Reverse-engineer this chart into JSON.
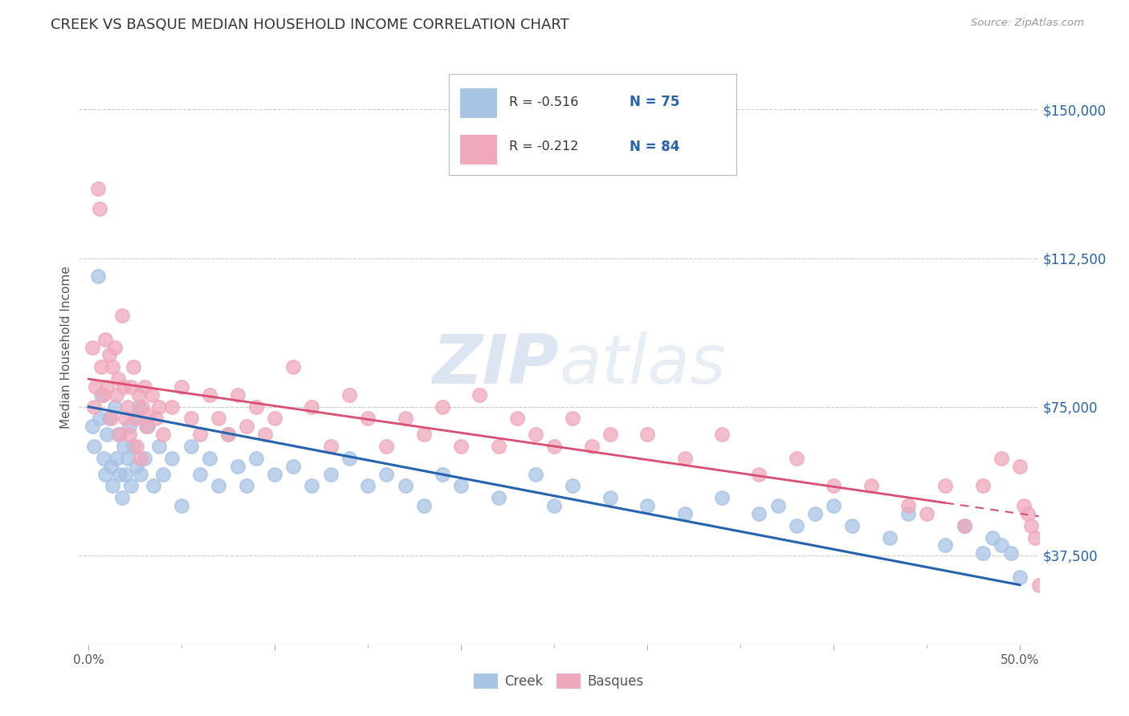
{
  "title": "CREEK VS BASQUE MEDIAN HOUSEHOLD INCOME CORRELATION CHART",
  "source": "Source: ZipAtlas.com",
  "ylabel": "Median Household Income",
  "yticks": [
    37500,
    75000,
    112500,
    150000
  ],
  "ytick_labels": [
    "$37,500",
    "$75,000",
    "$112,500",
    "$150,000"
  ],
  "creek_R": -0.516,
  "creek_N": 75,
  "basque_R": -0.212,
  "basque_N": 84,
  "creek_color": "#a8c4e5",
  "creek_line_color": "#2563ae",
  "basque_color": "#f0a8bc",
  "basque_line_color": "#d94f72",
  "legend_color": "#2563ae",
  "watermark_zip": "ZIP",
  "watermark_atlas": "atlas",
  "background_color": "#ffffff",
  "grid_color": "#cccccc",
  "title_color": "#333333",
  "source_color": "#999999",
  "creek_x": [
    0.2,
    0.3,
    0.5,
    0.6,
    0.7,
    0.8,
    0.9,
    1.0,
    1.1,
    1.2,
    1.3,
    1.4,
    1.5,
    1.6,
    1.7,
    1.8,
    1.9,
    2.0,
    2.1,
    2.2,
    2.3,
    2.4,
    2.5,
    2.6,
    2.7,
    2.8,
    3.0,
    3.2,
    3.5,
    3.8,
    4.0,
    4.5,
    5.0,
    5.5,
    6.0,
    6.5,
    7.0,
    7.5,
    8.0,
    8.5,
    9.0,
    10.0,
    11.0,
    12.0,
    13.0,
    14.0,
    15.0,
    16.0,
    17.0,
    18.0,
    19.0,
    20.0,
    22.0,
    24.0,
    25.0,
    26.0,
    28.0,
    30.0,
    32.0,
    34.0,
    36.0,
    37.0,
    38.0,
    39.0,
    40.0,
    41.0,
    43.0,
    44.0,
    46.0,
    47.0,
    48.0,
    48.5,
    49.0,
    49.5,
    50.0
  ],
  "creek_y": [
    70000,
    65000,
    108000,
    72000,
    78000,
    62000,
    58000,
    68000,
    72000,
    60000,
    55000,
    75000,
    62000,
    68000,
    58000,
    52000,
    65000,
    58000,
    62000,
    70000,
    55000,
    65000,
    72000,
    60000,
    75000,
    58000,
    62000,
    70000,
    55000,
    65000,
    58000,
    62000,
    50000,
    65000,
    58000,
    62000,
    55000,
    68000,
    60000,
    55000,
    62000,
    58000,
    60000,
    55000,
    58000,
    62000,
    55000,
    58000,
    55000,
    50000,
    58000,
    55000,
    52000,
    58000,
    50000,
    55000,
    52000,
    50000,
    48000,
    52000,
    48000,
    50000,
    45000,
    48000,
    50000,
    45000,
    42000,
    48000,
    40000,
    45000,
    38000,
    42000,
    40000,
    38000,
    32000
  ],
  "basque_x": [
    0.2,
    0.3,
    0.4,
    0.5,
    0.6,
    0.7,
    0.8,
    0.9,
    1.0,
    1.1,
    1.2,
    1.3,
    1.4,
    1.5,
    1.6,
    1.7,
    1.8,
    1.9,
    2.0,
    2.1,
    2.2,
    2.3,
    2.4,
    2.5,
    2.6,
    2.7,
    2.8,
    2.9,
    3.0,
    3.1,
    3.2,
    3.4,
    3.6,
    3.8,
    4.0,
    4.5,
    5.0,
    5.5,
    6.0,
    6.5,
    7.0,
    7.5,
    8.0,
    8.5,
    9.0,
    9.5,
    10.0,
    11.0,
    12.0,
    13.0,
    14.0,
    15.0,
    16.0,
    17.0,
    18.0,
    19.0,
    20.0,
    21.0,
    22.0,
    23.0,
    24.0,
    25.0,
    26.0,
    27.0,
    28.0,
    30.0,
    32.0,
    34.0,
    36.0,
    38.0,
    40.0,
    42.0,
    44.0,
    45.0,
    46.0,
    47.0,
    48.0,
    49.0,
    50.0,
    50.2,
    50.4,
    50.6,
    50.8,
    51.0
  ],
  "basque_y": [
    90000,
    75000,
    80000,
    130000,
    125000,
    85000,
    78000,
    92000,
    80000,
    88000,
    72000,
    85000,
    90000,
    78000,
    82000,
    68000,
    98000,
    80000,
    72000,
    75000,
    68000,
    80000,
    85000,
    72000,
    65000,
    78000,
    62000,
    75000,
    80000,
    70000,
    73000,
    78000,
    72000,
    75000,
    68000,
    75000,
    80000,
    72000,
    68000,
    78000,
    72000,
    68000,
    78000,
    70000,
    75000,
    68000,
    72000,
    85000,
    75000,
    65000,
    78000,
    72000,
    65000,
    72000,
    68000,
    75000,
    65000,
    78000,
    65000,
    72000,
    68000,
    65000,
    72000,
    65000,
    68000,
    68000,
    62000,
    68000,
    58000,
    62000,
    55000,
    55000,
    50000,
    48000,
    55000,
    45000,
    55000,
    62000,
    60000,
    50000,
    48000,
    45000,
    42000,
    30000
  ]
}
